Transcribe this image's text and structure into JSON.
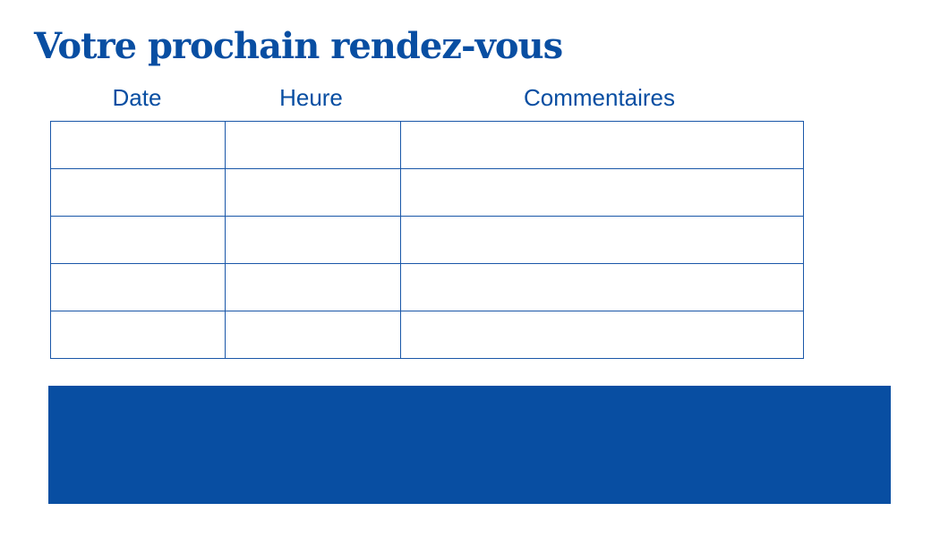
{
  "title": "Votre prochain rendez-vous",
  "columns": [
    "Date",
    "Heure",
    "Commentaires"
  ],
  "rows": [
    [
      "",
      "",
      ""
    ],
    [
      "",
      "",
      ""
    ],
    [
      "",
      "",
      ""
    ],
    [
      "",
      "",
      ""
    ],
    [
      "",
      "",
      ""
    ]
  ],
  "colors": {
    "brand_blue": "#084EA2"
  }
}
